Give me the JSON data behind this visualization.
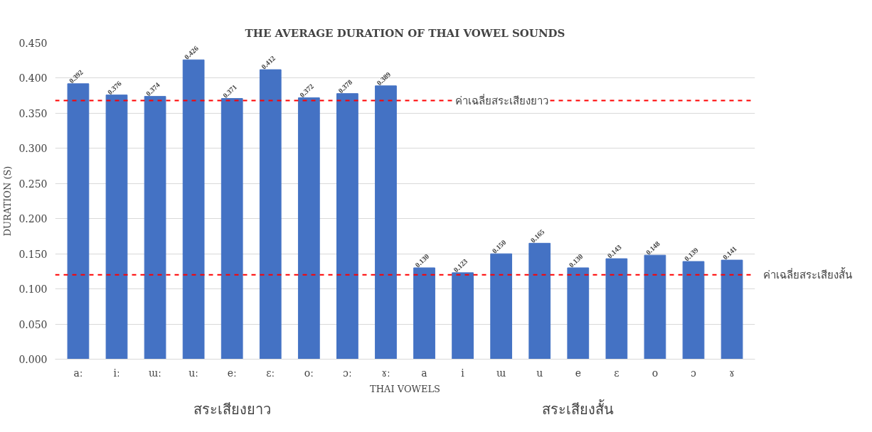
{
  "chart_data": {
    "type": "bar",
    "title": "THE AVERAGE DURATION OF THAI VOWEL SOUNDS",
    "xlabel": "THAI VOWELS",
    "ylabel": "DURATION (S)",
    "categories": [
      "aː",
      "iː",
      "ɯː",
      "uː",
      "eː",
      "ɛː",
      "oː",
      "ɔː",
      "ɤː",
      "a",
      "i",
      "ɯ",
      "u",
      "e",
      "ɛ",
      "o",
      "ɔ",
      "ɤ"
    ],
    "values": [
      0.392,
      0.376,
      0.374,
      0.426,
      0.371,
      0.412,
      0.372,
      0.378,
      0.389,
      0.13,
      0.123,
      0.15,
      0.165,
      0.13,
      0.143,
      0.148,
      0.139,
      0.141
    ],
    "color": "#4472c4",
    "value_labels": [
      "0.392",
      "0.376",
      "0.374",
      "0.426",
      "0.371",
      "0.412",
      "0.372",
      "0.378",
      "0.389",
      "0.130",
      "0.123",
      "0.150",
      "0.165",
      "0.130",
      "0.143",
      "0.148",
      "0.139",
      "0.141"
    ],
    "ylim": [
      0,
      0.45
    ],
    "yticks": [
      {
        "value": 0,
        "label": "0.000"
      },
      {
        "value": 0.05,
        "label": "0.050"
      },
      {
        "value": 0.1,
        "label": "0.100"
      },
      {
        "value": 0.15,
        "label": "0.150"
      },
      {
        "value": 0.2,
        "label": "0.200"
      },
      {
        "value": 0.25,
        "label": "0.250"
      },
      {
        "value": 0.3,
        "label": "0.300"
      },
      {
        "value": 0.35,
        "label": "0.350"
      },
      {
        "value": 0.4,
        "label": "0.400"
      },
      {
        "value": 0.45,
        "label": "0.450"
      }
    ],
    "grid": "y",
    "ref_lines": [
      {
        "axis": "y",
        "value": 0.368,
        "label": "ค่าเฉลี่ยสระเสียงยาว",
        "color": "#ff0000",
        "line_style": "dashed"
      },
      {
        "axis": "y",
        "value": 0.12,
        "label": "ค่าเฉลี่ยสระเสียงสั้น",
        "color": "#ff0000",
        "line_style": "dashed"
      }
    ],
    "annotations": [
      "สระเสียงยาว",
      "สระเสียงสั้น"
    ]
  }
}
